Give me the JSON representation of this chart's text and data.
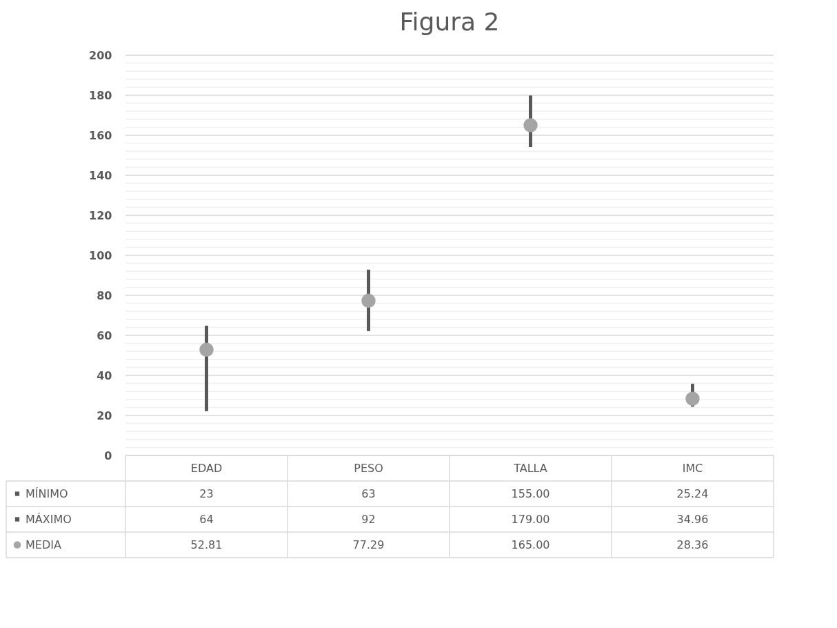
{
  "chart_data": {
    "type": "scatter",
    "title": "Figura 2",
    "categories": [
      "EDAD",
      "PESO",
      "TALLA",
      "IMC"
    ],
    "series": [
      {
        "name": "MÍNIMO",
        "color": "#595959",
        "values": [
          23,
          63,
          155.0,
          25.24
        ],
        "value_labels": [
          "23",
          "63",
          "155.00",
          "25.24"
        ]
      },
      {
        "name": "MÁXIMO",
        "color": "#595959",
        "values": [
          64,
          92,
          179.0,
          34.96
        ],
        "value_labels": [
          "64",
          "92",
          "179.00",
          "34.96"
        ]
      },
      {
        "name": "MEDIA",
        "color": "#a5a5a5",
        "marker": "circle",
        "values": [
          52.81,
          77.29,
          165.0,
          28.36
        ],
        "value_labels": [
          "52.81",
          "77.29",
          "165.00",
          "28.36"
        ]
      }
    ],
    "ylim": [
      0,
      200
    ],
    "yticks": [
      0,
      {
        "value": 4,
        "label": null
      },
      {
        "value": 8,
        "label": null
      },
      {
        "value": 12,
        "label": null
      },
      {
        "value": 16,
        "label": null
      },
      20,
      {
        "value": 24,
        "label": null
      },
      {
        "value": 28,
        "label": null
      },
      {
        "value": 32,
        "label": null
      },
      {
        "value": 36,
        "label": null
      },
      40,
      {
        "value": 44,
        "label": null
      },
      {
        "value": 48,
        "label": null
      },
      {
        "value": 52,
        "label": null
      },
      {
        "value": 56,
        "label": null
      },
      60,
      {
        "value": 64,
        "label": null
      },
      {
        "value": 68,
        "label": null
      },
      {
        "value": 72,
        "label": null
      },
      {
        "value": 76,
        "label": null
      },
      80,
      {
        "value": 84,
        "label": null
      },
      {
        "value": 88,
        "label": null
      },
      {
        "value": 92,
        "label": null
      },
      {
        "value": 96,
        "label": null
      },
      100,
      {
        "value": 104,
        "label": null
      },
      {
        "value": 108,
        "label": null
      },
      {
        "value": 112,
        "label": null
      },
      {
        "value": 116,
        "label": null
      },
      120,
      {
        "value": 124,
        "label": null
      },
      {
        "value": 128,
        "label": null
      },
      {
        "value": 132,
        "label": null
      },
      {
        "value": 136,
        "label": null
      },
      140,
      {
        "value": 144,
        "label": null
      },
      {
        "value": 148,
        "label": null
      },
      {
        "value": 152,
        "label": null
      },
      {
        "value": 156,
        "label": null
      },
      160,
      {
        "value": 164,
        "label": null
      },
      {
        "value": 168,
        "label": null
      },
      {
        "value": 172,
        "label": null
      },
      {
        "value": 176,
        "label": null
      },
      180,
      {
        "value": 184,
        "label": null
      },
      {
        "value": 188,
        "label": null
      },
      {
        "value": 192,
        "label": null
      },
      {
        "value": 196,
        "label": null
      },
      200
    ],
    "grid": true,
    "legend": "bottom",
    "data_labels": true
  }
}
